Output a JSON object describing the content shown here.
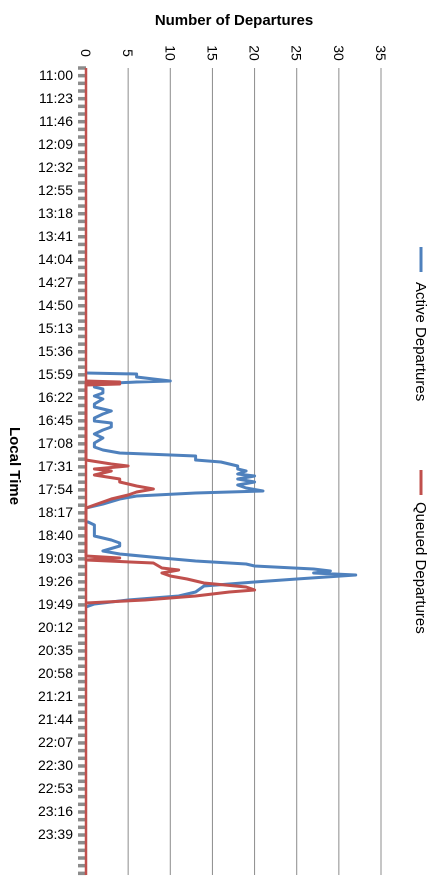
{
  "chart_data": {
    "type": "line",
    "orientation": "rotated-90-clockwise",
    "xlabel": "Local Time",
    "ylabel": "Number of Departures",
    "ylim": [
      0,
      35
    ],
    "ytick_values": [
      0,
      5,
      10,
      15,
      20,
      25,
      30,
      35
    ],
    "x_tick_labels": [
      "11:00",
      "11:23",
      "11:46",
      "12:09",
      "12:32",
      "12:55",
      "13:18",
      "13:41",
      "14:04",
      "14:27",
      "14:50",
      "15:13",
      "15:36",
      "15:59",
      "16:22",
      "16:45",
      "17:08",
      "17:31",
      "17:54",
      "18:17",
      "18:40",
      "19:03",
      "19:26",
      "19:49",
      "20:12",
      "20:35",
      "20:58",
      "21:21",
      "21:44",
      "22:07",
      "22:30",
      "22:53",
      "23:16",
      "23:39"
    ],
    "x_minutes_from_first_tick_per_label_step": 23,
    "grid": true,
    "legend_placement": "right",
    "series": [
      {
        "name": "Active Departures",
        "color": "#4f81bd",
        "points": [
          [
            "15:58",
            0
          ],
          [
            "15:59",
            6
          ],
          [
            "16:02",
            6
          ],
          [
            "16:04",
            8
          ],
          [
            "16:06",
            10
          ],
          [
            "16:07",
            6
          ],
          [
            "16:09",
            1
          ],
          [
            "16:12",
            1
          ],
          [
            "16:14",
            2
          ],
          [
            "16:18",
            2
          ],
          [
            "16:21",
            1
          ],
          [
            "16:24",
            2
          ],
          [
            "16:29",
            1
          ],
          [
            "16:32",
            1
          ],
          [
            "16:36",
            3
          ],
          [
            "16:39",
            2
          ],
          [
            "16:43",
            1
          ],
          [
            "16:46",
            1
          ],
          [
            "16:48",
            3
          ],
          [
            "16:52",
            3
          ],
          [
            "16:55",
            2
          ],
          [
            "16:59",
            1
          ],
          [
            "17:03",
            2
          ],
          [
            "17:08",
            1
          ],
          [
            "17:12",
            1
          ],
          [
            "17:15",
            2
          ],
          [
            "17:18",
            4
          ],
          [
            "17:21",
            13
          ],
          [
            "17:23",
            13
          ],
          [
            "17:25",
            13
          ],
          [
            "17:27",
            16
          ],
          [
            "17:29",
            17
          ],
          [
            "17:31",
            18
          ],
          [
            "17:34",
            18
          ],
          [
            "17:36",
            19
          ],
          [
            "17:39",
            18
          ],
          [
            "17:41",
            20
          ],
          [
            "17:44",
            18
          ],
          [
            "17:47",
            20
          ],
          [
            "17:50",
            18
          ],
          [
            "17:53",
            19
          ],
          [
            "17:56",
            21
          ],
          [
            "17:58",
            13
          ],
          [
            "18:01",
            6
          ],
          [
            "18:04",
            4
          ],
          [
            "18:09",
            2
          ],
          [
            "18:13",
            0
          ],
          [
            "18:16",
            0
          ],
          [
            "18:20",
            0
          ],
          [
            "18:26",
            0
          ],
          [
            "18:30",
            1
          ],
          [
            "18:34",
            1
          ],
          [
            "18:38",
            1
          ],
          [
            "18:41",
            1
          ],
          [
            "18:45",
            3
          ],
          [
            "18:48",
            4
          ],
          [
            "18:51",
            4
          ],
          [
            "18:56",
            2
          ],
          [
            "18:59",
            4
          ],
          [
            "19:03",
            9
          ],
          [
            "19:06",
            13
          ],
          [
            "19:09",
            19
          ],
          [
            "19:11",
            20
          ],
          [
            "19:14",
            27
          ],
          [
            "19:16",
            29
          ],
          [
            "19:18",
            27
          ],
          [
            "19:20",
            32
          ],
          [
            "19:24",
            25
          ],
          [
            "19:27",
            20
          ],
          [
            "19:31",
            14
          ],
          [
            "19:37",
            13
          ],
          [
            "19:41",
            11
          ],
          [
            "19:45",
            5
          ],
          [
            "19:49",
            1
          ],
          [
            "19:52",
            0
          ]
        ]
      },
      {
        "name": "Queued Departures",
        "color": "#c0504d",
        "points": [
          [
            "16:06",
            0
          ],
          [
            "16:07",
            4
          ],
          [
            "16:08",
            0
          ],
          [
            "16:09",
            4
          ],
          [
            "16:10",
            0
          ],
          [
            "17:25",
            0
          ],
          [
            "17:29",
            3
          ],
          [
            "17:31",
            5
          ],
          [
            "17:34",
            1
          ],
          [
            "17:36",
            3
          ],
          [
            "17:40",
            1
          ],
          [
            "17:44",
            4
          ],
          [
            "17:47",
            4
          ],
          [
            "17:51",
            6
          ],
          [
            "17:54",
            8
          ],
          [
            "17:57",
            6
          ],
          [
            "18:00",
            5
          ],
          [
            "18:04",
            3
          ],
          [
            "18:07",
            2
          ],
          [
            "18:10",
            1
          ],
          [
            "18:13",
            0
          ],
          [
            "19:01",
            0
          ],
          [
            "19:03",
            4
          ],
          [
            "19:05",
            0
          ],
          [
            "19:08",
            8
          ],
          [
            "19:13",
            9
          ],
          [
            "19:15",
            11
          ],
          [
            "19:18",
            9
          ],
          [
            "19:21",
            10
          ],
          [
            "19:24",
            12
          ],
          [
            "19:28",
            14
          ],
          [
            "19:32",
            19
          ],
          [
            "19:35",
            20
          ],
          [
            "19:37",
            17
          ],
          [
            "19:41",
            13
          ],
          [
            "19:45",
            7
          ],
          [
            "19:48",
            0
          ]
        ]
      }
    ]
  }
}
